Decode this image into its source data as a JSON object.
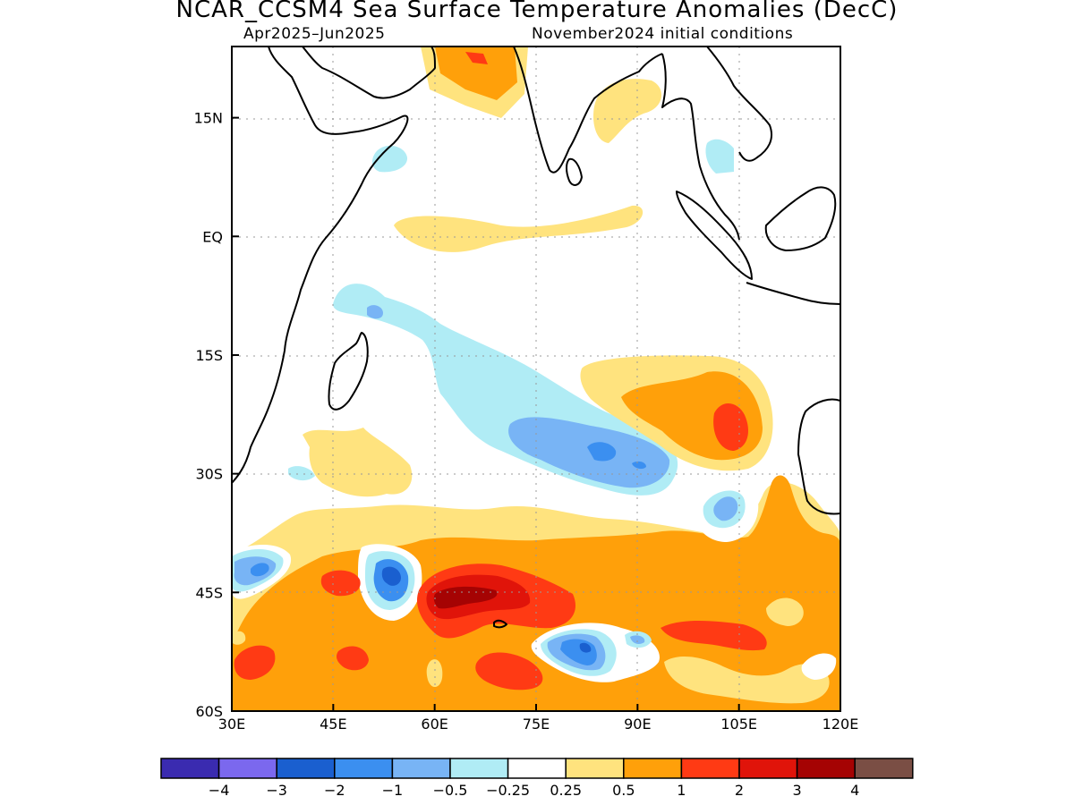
{
  "title": "NCAR_CCSM4 Sea Surface Temperature Anomalies (DecC)",
  "subtitle_left": "Apr2025–Jun2025",
  "subtitle_right": "November2024 initial conditions",
  "map": {
    "region": {
      "lon_range": [
        30,
        120
      ],
      "lat_range": [
        -60,
        24
      ]
    },
    "lon_ticks": [
      {
        "lon": 30,
        "label": "30E"
      },
      {
        "lon": 45,
        "label": "45E"
      },
      {
        "lon": 60,
        "label": "60E"
      },
      {
        "lon": 75,
        "label": "75E"
      },
      {
        "lon": 90,
        "label": "90E"
      },
      {
        "lon": 105,
        "label": "105E"
      },
      {
        "lon": 120,
        "label": "120E"
      }
    ],
    "lat_ticks": [
      {
        "lat": 15,
        "label": "15N"
      },
      {
        "lat": 0,
        "label": "EQ"
      },
      {
        "lat": -15,
        "label": "15S"
      },
      {
        "lat": -30,
        "label": "30S"
      },
      {
        "lat": -45,
        "label": "45S"
      },
      {
        "lat": -60,
        "label": "60S"
      }
    ],
    "grid": true
  },
  "colorbar": {
    "colors": [
      "#3a2bb0",
      "#7b68ee",
      "#1a5fcf",
      "#3b8ff0",
      "#78b4f5",
      "#b0ecf5",
      "#ffffff",
      "#ffe37e",
      "#ffa00a",
      "#ff3a14",
      "#e0140a",
      "#a50303",
      "#7a4e44"
    ],
    "labels": [
      "−4",
      "−3",
      "−2",
      "−1",
      "−0.5",
      "−0.25",
      "0.25",
      "0.5",
      "1",
      "2",
      "3",
      "4"
    ]
  }
}
